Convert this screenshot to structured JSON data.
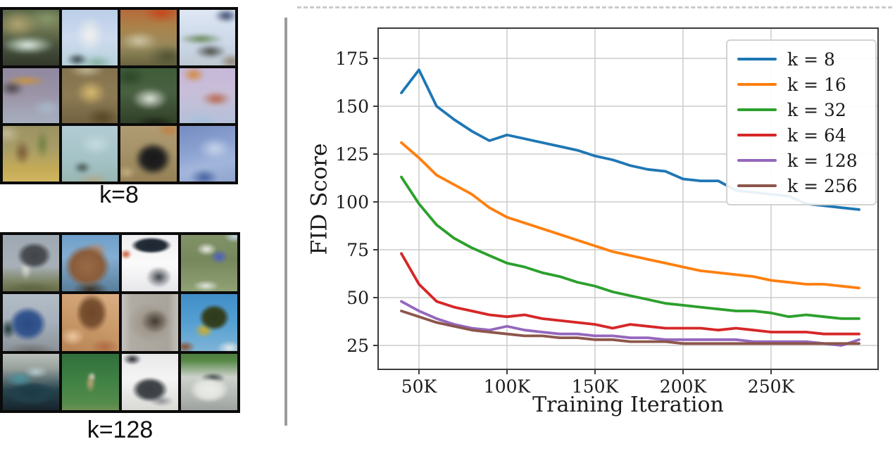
{
  "left_panel": {
    "grid_k8": {
      "label": "k=8",
      "cells": [
        {
          "desc": "blurry green-tan landscape with pale streak",
          "layers": [
            "radial-gradient(ellipse 70% 25% at 45% 62%, #dff2e6 0%, transparent 60%)",
            "radial-gradient(ellipse 50% 35% at 30% 28%, #b5a56e 0%, transparent 65%)",
            "radial-gradient(ellipse 60% 30% at 75% 20%, #8a9a6a 0%, transparent 60%)",
            "linear-gradient(180deg, #566444 0%, #6e7650 35%, #45503a 65%, #2e3226 100%)"
          ]
        },
        {
          "desc": "pale blue with white blob figure",
          "layers": [
            "radial-gradient(ellipse 35% 45% at 50% 45%, #f2f2ee 0%, transparent 65%)",
            "radial-gradient(ellipse 25% 15% at 30% 85%, #2e3a40 0%, transparent 70%)",
            "radial-gradient(ellipse 40% 20% at 62% 90%, #7fae9c 0%, transparent 65%)",
            "linear-gradient(180deg, #b8cce8 0%, #ccdaf0 50%, #b4d2da 100%)"
          ]
        },
        {
          "desc": "orange top over olive blur",
          "layers": [
            "radial-gradient(ellipse 45% 25% at 70% 10%, #cc4418 0%, transparent 65%)",
            "radial-gradient(ellipse 50% 25% at 35% 55%, #cfc7a4 0%, transparent 60%)",
            "radial-gradient(ellipse 50% 30% at 80% 80%, #4e5230 0%, transparent 65%)",
            "linear-gradient(180deg, #bc6434 0%, #ab8448 35%, #97895a 65%, #5e5c38 100%)"
          ]
        },
        {
          "desc": "pale blue with navy mark and green streak",
          "layers": [
            "radial-gradient(ellipse 30% 18% at 80% 15%, #2c3e66 0%, transparent 65%)",
            "radial-gradient(ellipse 60% 15% at 40% 52%, #5e8048 0%, transparent 60%)",
            "radial-gradient(ellipse 40% 18% at 55% 72%, #44443c 0%, transparent 65%)",
            "radial-gradient(ellipse 30% 20% at 88% 88%, #8e7e6a 0%, transparent 65%)",
            "linear-gradient(180deg, #e0e8f4 0%, #ccd8ea 55%, #bcc8d2 100%)"
          ]
        },
        {
          "desc": "gray-purple with orange streak",
          "layers": [
            "radial-gradient(ellipse 55% 14% at 42% 26%, #d2942e 0%, transparent 60%)",
            "radial-gradient(ellipse 30% 20% at 20% 38%, #4a4244 0%, transparent 65%)",
            "radial-gradient(ellipse 40% 25% at 75% 70%, #a8b8cc 0%, transparent 60%)",
            "linear-gradient(180deg, #8e86a0 0%, #9a92a6 45%, #a8b2c2 100%)"
          ]
        },
        {
          "desc": "olive with yellow bird blob",
          "layers": [
            "radial-gradient(ellipse 40% 35% at 52% 45%, #dcbc6c 0%, transparent 60%)",
            "radial-gradient(ellipse 45% 20% at 45% 8%, #c2b896 0%, transparent 65%)",
            "radial-gradient(ellipse 40% 25% at 70% 85%, #55441f 0%, transparent 65%)",
            "linear-gradient(180deg, #83714a 0%, #8d7b52 50%, #6f5e3c 100%)"
          ]
        },
        {
          "desc": "dark green foliage with white blob",
          "layers": [
            "radial-gradient(ellipse 48% 30% at 52% 55%, #e6eae2 0%, transparent 60%)",
            "radial-gradient(ellipse 40% 25% at 20% 20%, #2a4426 0%, transparent 65%)",
            "radial-gradient(ellipse 50% 20% at 60% 95%, #16200f 0%, transparent 65%)",
            "linear-gradient(180deg, #3c5c36 0%, #486040 45%, #2c3c24 100%)"
          ]
        },
        {
          "desc": "lavender with orange-red smears",
          "layers": [
            "radial-gradient(ellipse 28% 20% at 28% 16%, #d8852e 0%, transparent 65%)",
            "radial-gradient(ellipse 40% 20% at 64% 55%, #bc5e3c 0%, transparent 60%)",
            "radial-gradient(ellipse 45% 22% at 40% 90%, #a4c0dc 0%, transparent 60%)",
            "linear-gradient(180deg, #c6b6da 0%, #c8bed8 45%, #b2c0da 100%)"
          ]
        },
        {
          "desc": "yellow-tan with green vertical streaks",
          "layers": [
            "radial-gradient(ellipse 18% 40% at 68% 35%, #6c803c 0%, transparent 60%)",
            "radial-gradient(ellipse 22% 35% at 36% 48%, #77572f 0%, transparent 60%)",
            "radial-gradient(ellipse 35% 25% at 12% 18%, #c4bc94 0%, transparent 65%)",
            "linear-gradient(180deg, #9a9060 0%, #a89c64 40%, #c6ab52 75%, #d3b95c 100%)"
          ]
        },
        {
          "desc": "light teal haze",
          "layers": [
            "radial-gradient(ellipse 20% 14% at 38% 72%, #3c4c48 0%, transparent 70%)",
            "radial-gradient(ellipse 45% 18% at 55% 92%, #b2a886 0%, transparent 60%)",
            "radial-gradient(ellipse 45% 30% at 60% 35%, #c4dce0 0%, transparent 60%)",
            "linear-gradient(180deg, #b2ccd6 0%, #a4c4c8 55%, #96b4b0 100%)"
          ]
        },
        {
          "desc": "tan with large black blob",
          "layers": [
            "radial-gradient(ellipse 42% 38% at 57% 58%, #191919 0%, #1f1f1f 40%, transparent 70%)",
            "radial-gradient(ellipse 30% 18% at 82% 12%, #c4803a 0%, transparent 65%)",
            "radial-gradient(ellipse 25% 18% at 15% 80%, #c8b484 0%, transparent 60%)",
            "linear-gradient(180deg, #b29c72 0%, #a89468 40%, #947e50 100%)"
          ]
        },
        {
          "desc": "soft blue gradient blur",
          "layers": [
            "radial-gradient(ellipse 45% 30% at 62% 42%, #c6d4ea 0%, transparent 60%)",
            "radial-gradient(ellipse 35% 22% at 45% 88%, #3e5ca0 0%, transparent 65%)",
            "linear-gradient(165deg, #7088c2 0%, #8ca4d4 45%, #a2b6de 65%, #8ba0cc 100%)"
          ]
        }
      ]
    },
    "grid_k128": {
      "label": "k=128",
      "cells": [
        {
          "desc": "gray animal statue on olive ground",
          "layers": [
            "radial-gradient(ellipse 38% 30% at 55% 38%, #41454a 0%, #4a4e52 45%, transparent 72%)",
            "radial-gradient(ellipse 15% 25% at 42% 60%, #d6d6d0 0%, transparent 65%)",
            "radial-gradient(ellipse 60% 16% at 50% 90%, #5e6442 0%, transparent 70%)",
            "linear-gradient(180deg, #9ea8b2 0%, #a8b0b8 55%, #78805c 82%, #5c6244 100%)"
          ]
        },
        {
          "desc": "brown animal against blue sky",
          "layers": [
            "radial-gradient(ellipse 48% 45% at 45% 55%, #9a6a46 0%, #8a5c3a 50%, transparent 75%)",
            "radial-gradient(ellipse 30% 22% at 58% 30%, #b4886a 0%, transparent 65%)",
            "radial-gradient(ellipse 40% 20% at 50% 92%, #3c3020 0%, transparent 70%)",
            "linear-gradient(180deg, #6a9cc8 0%, #84aed2 40%, #567a96 100%)"
          ]
        },
        {
          "desc": "dark glossy object on white",
          "layers": [
            "radial-gradient(ellipse 45% 18% at 52% 22%, #1e2630 0%, #242c38 50%, transparent 72%)",
            "radial-gradient(ellipse 14% 12% at 12% 36%, #c25432 0%, transparent 70%)",
            "radial-gradient(ellipse 30% 25% at 64% 72%, #3c424a 0%, transparent 68%)",
            "linear-gradient(180deg, #eeeef0 0%, #fbfbfb 50%, #e4e4e8 100%)"
          ]
        },
        {
          "desc": "blue-white bird on green",
          "layers": [
            "radial-gradient(ellipse 25% 16% at 46% 28%, #ecece8 0%, transparent 65%)",
            "radial-gradient(ellipse 22% 18% at 66% 40%, #4c5cc8 0%, transparent 65%)",
            "radial-gradient(ellipse 35% 15% at 45% 86%, #e2e6de 0%, transparent 60%)",
            "radial-gradient(ellipse 25% 15% at 90% 8%, #c6d6e6 0%, transparent 65%)",
            "linear-gradient(180deg, #84946a 0%, #76885c 45%, #94a478 100%)"
          ]
        },
        {
          "desc": "dark blue bull on gray sky",
          "layers": [
            "radial-gradient(ellipse 42% 38% at 45% 52%, #2a4a84 0%, #34558e 45%, transparent 72%)",
            "radial-gradient(ellipse 20% 25% at 14% 60%, #1e3a3a 0%, transparent 65%)",
            "radial-gradient(ellipse 60% 18% at 50% 94%, #6e6e6e 0%, transparent 70%)",
            "linear-gradient(180deg, #b4bec8 0%, #a6b0bc 50%, #888e94 100%)"
          ]
        },
        {
          "desc": "tan close-up with dark diagonal shape",
          "layers": [
            "radial-gradient(ellipse 35% 42% at 52% 35%, #6e4628 0%, #7a5232 45%, transparent 72%)",
            "radial-gradient(ellipse 30% 22% at 22% 72%, #ecc8a0 0%, transparent 65%)",
            "radial-gradient(ellipse 35% 20% at 72% 88%, #b06a44 0%, transparent 65%)",
            "linear-gradient(200deg, #dcb088 0%, #cc9c6c 45%, #b48052 100%)"
          ]
        },
        {
          "desc": "gray frame with blurry dark center",
          "layers": [
            "radial-gradient(ellipse 32% 28% at 58% 48%, #433a30 0%, transparent 68%)",
            "radial-gradient(ellipse 45% 40% at 50% 50%, #968a7c 0%, transparent 80%)",
            "linear-gradient(90deg, #d0d0cc 0%, #b0aca4 20%, #a8a49c 78%, #ccc8c2 100%)"
          ]
        },
        {
          "desc": "yellow-black machine on bright blue sky",
          "layers": [
            "radial-gradient(ellipse 35% 30% at 58% 42%, #2c3a1e 0%, #34401e 45%, transparent 70%)",
            "radial-gradient(ellipse 25% 20% at 42% 62%, #d4ac20 0%, transparent 62%)",
            "radial-gradient(ellipse 30% 18% at 82% 90%, #e4eaea 0%, transparent 65%)",
            "radial-gradient(ellipse 25% 15% at 12% 88%, #8a4c2a 0%, transparent 65%)",
            "linear-gradient(180deg, #3e8cc8 0%, #55a0d2 50%, #84b6d8 100%)"
          ]
        },
        {
          "desc": "dark teal car",
          "layers": [
            "radial-gradient(ellipse 35% 20% at 32% 45%, #47929e 0%, transparent 65%)",
            "radial-gradient(ellipse 30% 15% at 58% 34%, #b4c8cc 0%, transparent 65%)",
            "radial-gradient(ellipse 55% 25% at 50% 68%, #1c3a46 0%, #20404c 45%, transparent 75%)",
            "linear-gradient(180deg, #c2c6c2 0%, #9aa29e 28%, #28444e 62%, #141f26 100%)"
          ]
        },
        {
          "desc": "small figure on green field",
          "layers": [
            "radial-gradient(ellipse 12% 22% at 50% 52%, #c2a274 0%, transparent 68%)",
            "radial-gradient(ellipse 10% 12% at 52% 42%, #dcd8cc 0%, transparent 70%)",
            "linear-gradient(180deg, #2e6e3a 0%, #418245 50%, #568c4c 85%, #7a9458 100%)"
          ]
        },
        {
          "desc": "dark machine on white backdrop",
          "layers": [
            "radial-gradient(ellipse 40% 28% at 50% 62%, #3a3e42 0%, #42464a 45%, transparent 72%)",
            "radial-gradient(ellipse 22% 14% at 22% 14%, #23272d 0%, transparent 68%)",
            "radial-gradient(ellipse 30% 14% at 68% 80%, #8e9296 0%, transparent 65%)",
            "linear-gradient(180deg, #e6e6e6 0%, #f4f4f4 45%, #d6d6d2 100%)"
          ]
        },
        {
          "desc": "white vintage car with green top strip",
          "layers": [
            "radial-gradient(ellipse 42% 28% at 50% 62%, #ebede9 0%, #e2e4e0 45%, transparent 75%)",
            "radial-gradient(ellipse 30% 14% at 56% 44%, #2c3236 0%, transparent 65%)",
            "linear-gradient(180deg, #4a7a3a 0%, #578846 16%, #cdd2cc 42%, #b2b6b2 75%, #989c98 100%)"
          ]
        }
      ]
    }
  },
  "chart_data": {
    "type": "line",
    "title": "",
    "xlabel": "Training Iteration",
    "ylabel": "FID Score",
    "grid": true,
    "legend_position": "upper right",
    "x": [
      40,
      50,
      60,
      70,
      80,
      90,
      100,
      110,
      120,
      130,
      140,
      150,
      160,
      170,
      180,
      190,
      200,
      210,
      220,
      230,
      240,
      250,
      260,
      270,
      280,
      290,
      300
    ],
    "x_unit_suffix": "K",
    "x_tick_values": [
      50,
      100,
      150,
      200,
      250
    ],
    "x_tick_labels": [
      "50K",
      "100K",
      "150K",
      "200K",
      "250K"
    ],
    "y_ticks": [
      25,
      50,
      75,
      100,
      125,
      150,
      175
    ],
    "xlim": [
      27,
      311
    ],
    "ylim": [
      12,
      190
    ],
    "series": [
      {
        "name": "k = 8",
        "color": "#1f77b4",
        "values": [
          157,
          169,
          150,
          143,
          137,
          132,
          135,
          133,
          131,
          129,
          127,
          124,
          122,
          119,
          117,
          116,
          112,
          111,
          111,
          106,
          105,
          104,
          103,
          99,
          98,
          97,
          96
        ]
      },
      {
        "name": "k = 16",
        "color": "#ff7f0e",
        "values": [
          131,
          123,
          114,
          109,
          104,
          97,
          92,
          89,
          86,
          83,
          80,
          77,
          74,
          72,
          70,
          68,
          66,
          64,
          63,
          62,
          61,
          59,
          58,
          57,
          57,
          56,
          55
        ]
      },
      {
        "name": "k = 32",
        "color": "#2ca02c",
        "values": [
          113,
          99,
          88,
          81,
          76,
          72,
          68,
          66,
          63,
          61,
          58,
          56,
          53,
          51,
          49,
          47,
          46,
          45,
          44,
          43,
          43,
          42,
          40,
          41,
          40,
          39,
          39
        ]
      },
      {
        "name": "k = 64",
        "color": "#d62728",
        "values": [
          73,
          57,
          48,
          45,
          43,
          41,
          40,
          41,
          39,
          38,
          37,
          36,
          34,
          36,
          35,
          34,
          34,
          34,
          33,
          34,
          33,
          32,
          32,
          32,
          31,
          31,
          31
        ]
      },
      {
        "name": "k = 128",
        "color": "#9467bd",
        "values": [
          48,
          43,
          39,
          36,
          34,
          33,
          35,
          33,
          32,
          31,
          31,
          30,
          30,
          29,
          29,
          28,
          28,
          28,
          28,
          28,
          27,
          27,
          27,
          27,
          26,
          25,
          28
        ]
      },
      {
        "name": "k = 256",
        "color": "#8c564b",
        "values": [
          43,
          40,
          37,
          35,
          33,
          32,
          31,
          30,
          30,
          29,
          29,
          28,
          28,
          27,
          27,
          27,
          26,
          26,
          26,
          26,
          26,
          26,
          26,
          26,
          26,
          26,
          26
        ]
      }
    ]
  }
}
